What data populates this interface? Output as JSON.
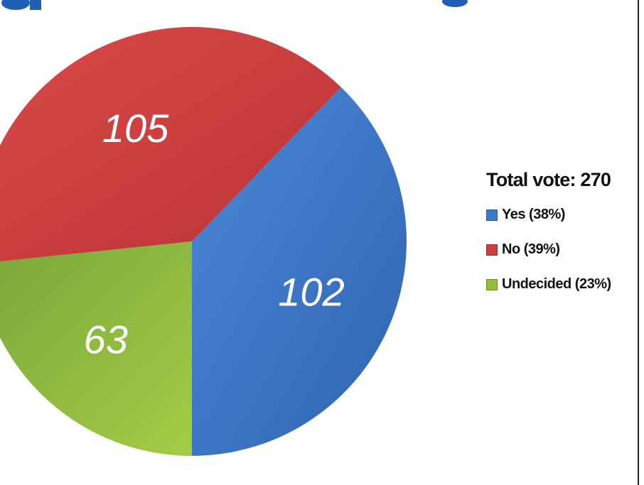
{
  "chart_data": {
    "type": "pie",
    "title": "",
    "total_label": "Total vote: 270",
    "slices": [
      {
        "label": "Yes (38%)",
        "value": 102,
        "value_label": "102",
        "color": "#3d78c9"
      },
      {
        "label": "No (39%)",
        "value": 105,
        "value_label": "105",
        "color": "#cf3d3d"
      },
      {
        "label": "Undecided (23%)",
        "value": 63,
        "value_label": "63",
        "color": "#8fbf3a"
      }
    ],
    "legend_position": "right"
  }
}
